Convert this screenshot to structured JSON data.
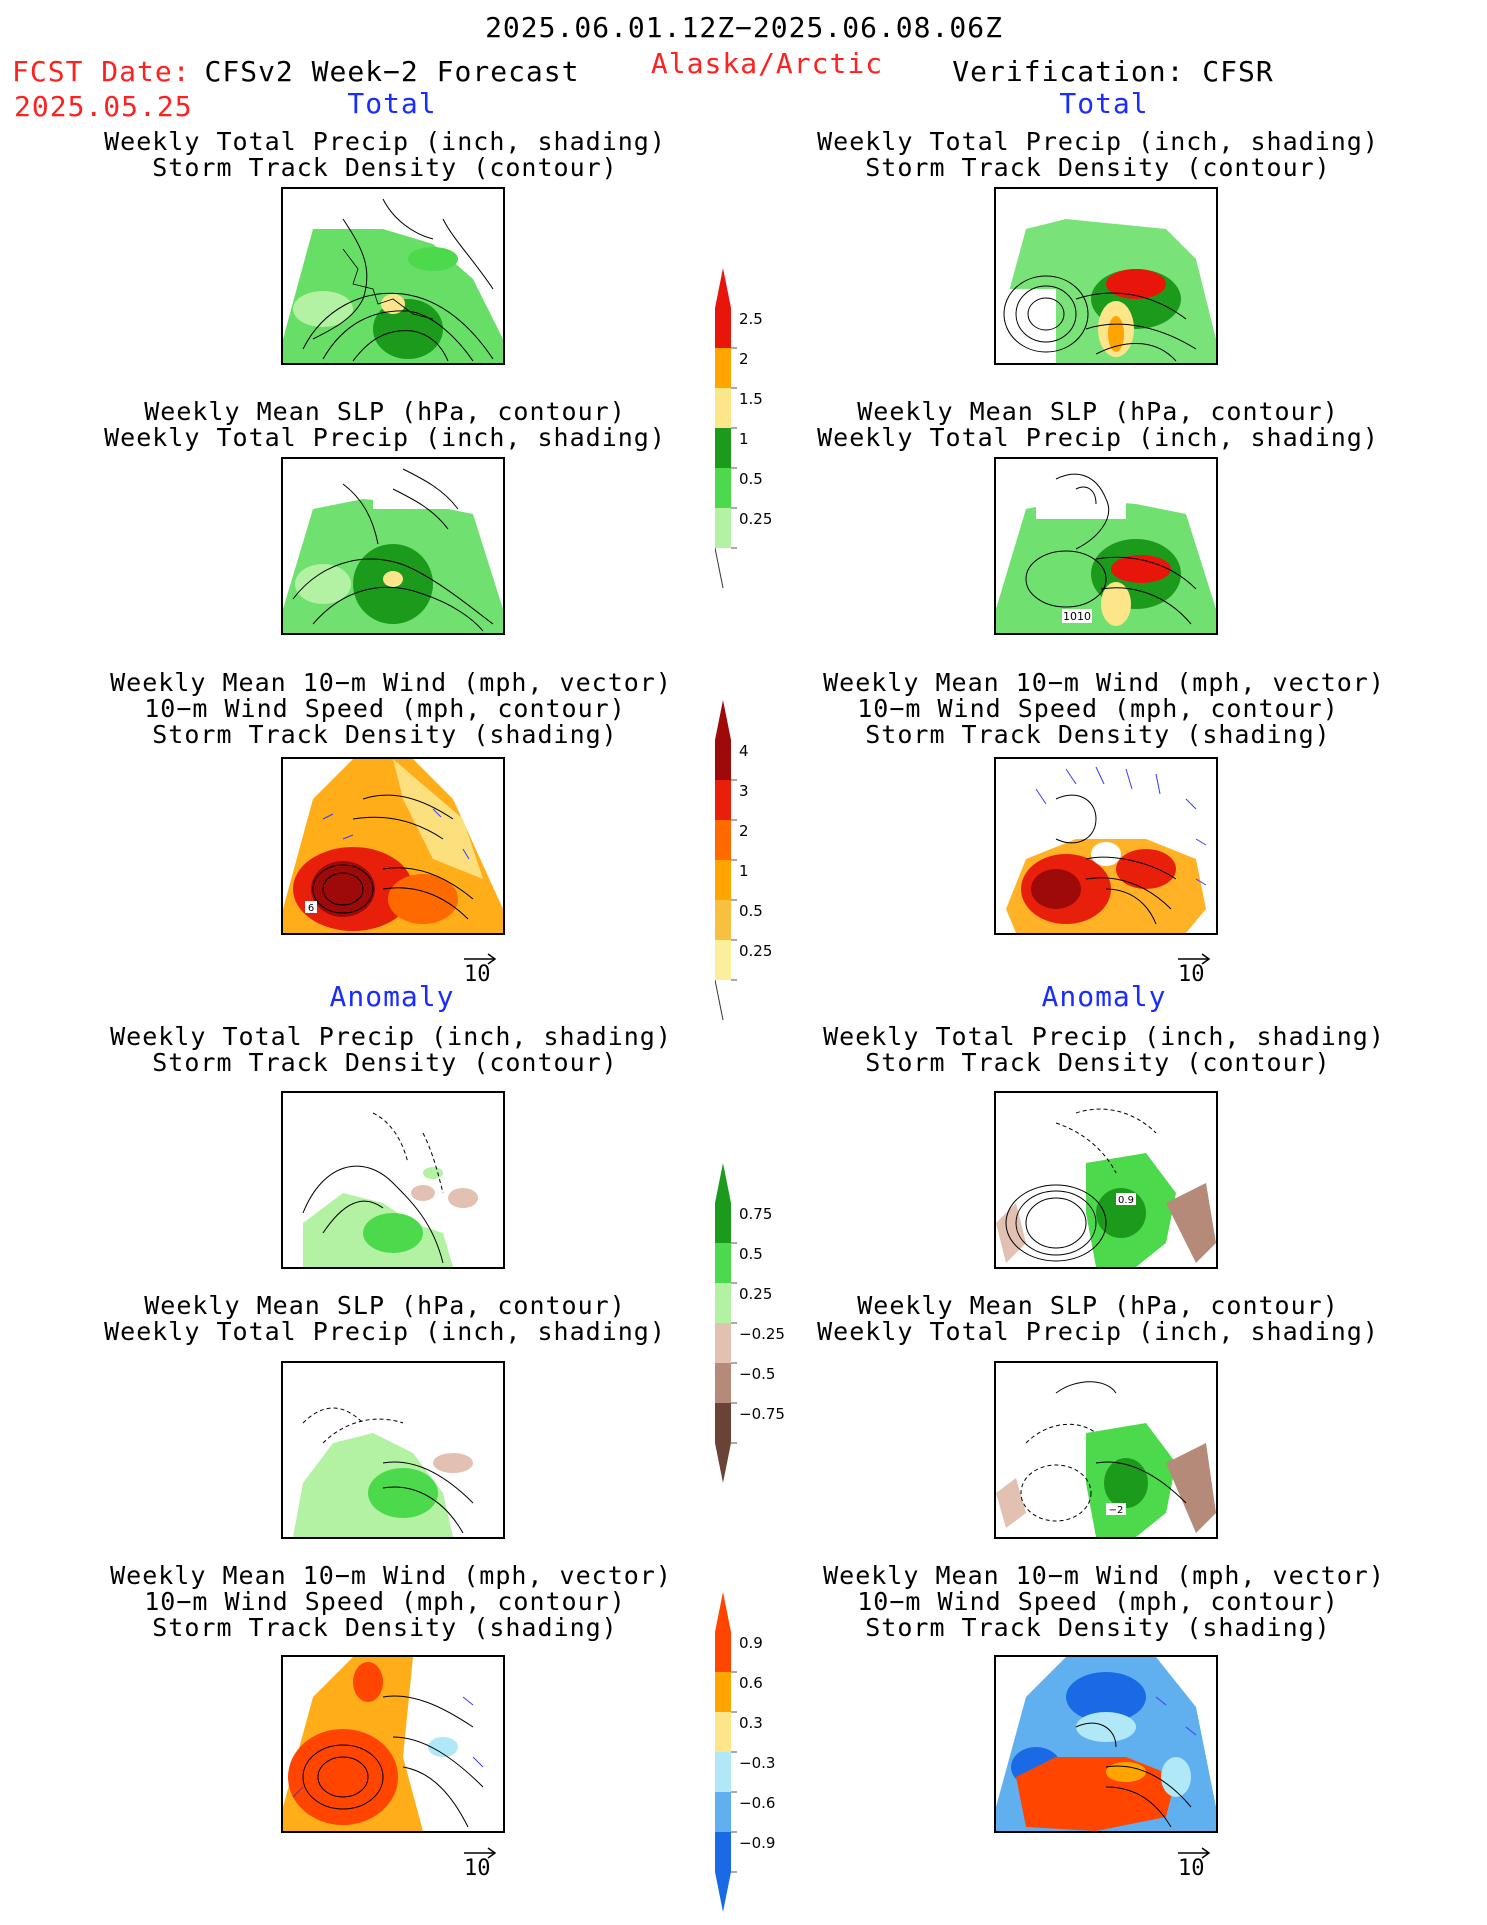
{
  "header": {
    "date_range": "2025.06.01.12Z−2025.06.08.06Z",
    "fcst_date_label": "FCST Date:",
    "fcst_date_value": "2025.05.25",
    "left_title": "CFSv2 Week−2 Forecast",
    "region": "Alaska/Arctic",
    "right_title": "Verification: CFSR"
  },
  "sections": {
    "total": "Total",
    "anomaly": "Anomaly"
  },
  "panels": {
    "precip_track": [
      "Weekly Total Precip (inch, shading)",
      "Storm Track Density (contour)"
    ],
    "slp_precip": [
      "Weekly Mean SLP (hPa, contour)",
      "Weekly Total Precip (inch, shading)"
    ],
    "wind_track": [
      "Weekly Mean 10−m Wind (mph, vector)",
      "10−m Wind Speed (mph, contour)",
      "Storm Track Density (shading)"
    ]
  },
  "map_labels": {
    "slp_right": "1010",
    "wind_left": "6",
    "anom_precip_right": "0.9",
    "anom_slp_right": "−2"
  },
  "vector_ref": "10",
  "colorbars": {
    "precip_total": {
      "labels": [
        "2.5",
        "2",
        "1.5",
        "1",
        "0.5",
        "0.25"
      ],
      "colors": [
        "#e8150b",
        "#ffa500",
        "#fde68a",
        "#1c9a1c",
        "#4cd94c",
        "#b3f2a3"
      ]
    },
    "track_total": {
      "labels": [
        "4",
        "3",
        "2",
        "1",
        "0.5",
        "0.25"
      ],
      "colors": [
        "#9e0a0a",
        "#e8200b",
        "#ff6a00",
        "#ffa500",
        "#f8c040",
        "#fdee9e"
      ]
    },
    "precip_anom": {
      "labels": [
        "0.75",
        "0.5",
        "0.25",
        "−0.25",
        "−0.5",
        "−0.75"
      ],
      "colors": [
        "#1c9a1c",
        "#4cd94c",
        "#b3f2a3",
        "#e2c0b2",
        "#b58a78",
        "#6b4236"
      ]
    },
    "track_anom": {
      "labels": [
        "0.9",
        "0.6",
        "0.3",
        "−0.3",
        "−0.6",
        "−0.9"
      ],
      "colors": [
        "#ff4500",
        "#ffa500",
        "#fde68a",
        "#b0e8f8",
        "#60b0f0",
        "#1a6ae6"
      ]
    }
  }
}
